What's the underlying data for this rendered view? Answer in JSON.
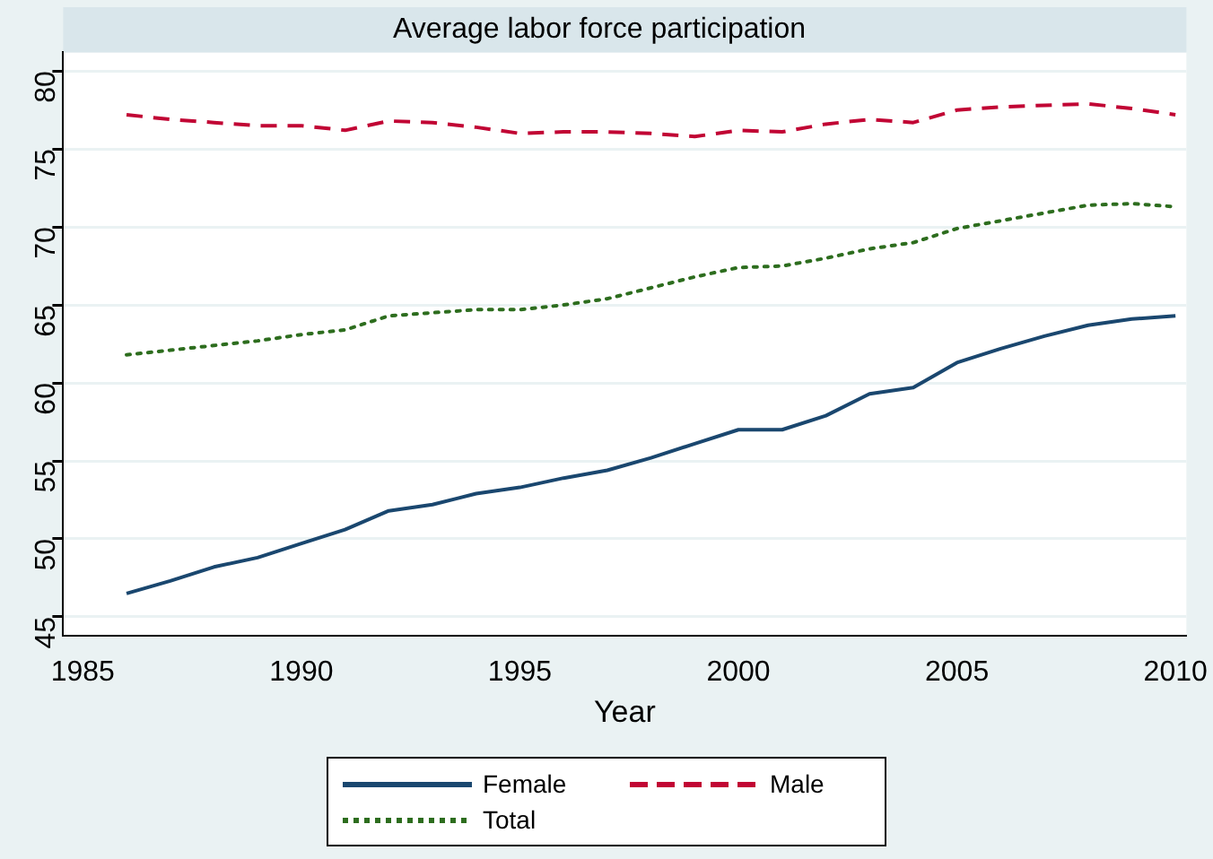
{
  "chart_data": {
    "type": "line",
    "title": "Average labor force participation",
    "xlabel": "Year",
    "x": [
      1986,
      1987,
      1988,
      1989,
      1990,
      1991,
      1992,
      1993,
      1994,
      1995,
      1996,
      1997,
      1998,
      1999,
      2000,
      2001,
      2002,
      2003,
      2004,
      2005,
      2006,
      2007,
      2008,
      2009,
      2010
    ],
    "series": [
      {
        "name": "Female",
        "color": "#1a476f",
        "line_style": "solid",
        "values": [
          46.5,
          47.3,
          48.2,
          48.8,
          49.7,
          50.6,
          51.8,
          52.2,
          52.9,
          53.3,
          53.9,
          54.4,
          55.2,
          56.1,
          57.0,
          57.0,
          57.9,
          59.3,
          59.7,
          61.3,
          62.2,
          63.0,
          63.7,
          64.1,
          64.3
        ]
      },
      {
        "name": "Male",
        "color": "#c10534",
        "line_style": "dashed",
        "values": [
          77.2,
          76.9,
          76.7,
          76.5,
          76.5,
          76.2,
          76.8,
          76.7,
          76.4,
          76.0,
          76.1,
          76.1,
          76.0,
          75.8,
          76.2,
          76.1,
          76.6,
          76.9,
          76.7,
          77.5,
          77.7,
          77.8,
          77.9,
          77.6,
          77.2
        ]
      },
      {
        "name": "Total",
        "color": "#2d6d1e",
        "line_style": "dotted",
        "values": [
          61.8,
          62.1,
          62.4,
          62.7,
          63.1,
          63.4,
          64.3,
          64.5,
          64.7,
          64.7,
          65.0,
          65.4,
          66.1,
          66.8,
          67.4,
          67.5,
          68.0,
          68.6,
          69.0,
          69.9,
          70.4,
          70.9,
          71.4,
          71.5,
          71.3
        ]
      }
    ],
    "xlim": [
      1984.55,
      2010.25
    ],
    "xticks": [
      1985,
      1990,
      1995,
      2000,
      2005,
      2010
    ],
    "ylim": [
      43.8,
      81.2
    ],
    "yticks": [
      45,
      50,
      55,
      60,
      65,
      70,
      75,
      80
    ],
    "grid": "y",
    "legend": "bottom",
    "marker": "none"
  }
}
